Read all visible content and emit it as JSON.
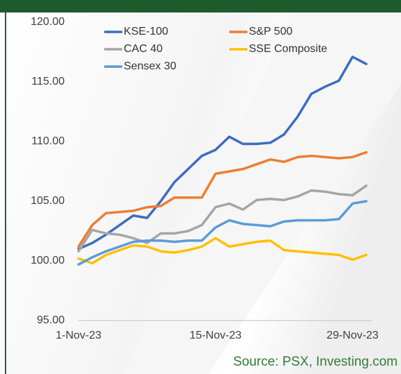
{
  "chart_data": {
    "type": "line",
    "source": "Source: PSX, Investing.com",
    "categories": [
      "1-Nov-23",
      null,
      null,
      null,
      null,
      null,
      null,
      null,
      null,
      null,
      "15-Nov-23",
      null,
      null,
      null,
      null,
      null,
      null,
      null,
      null,
      null,
      "29-Nov-23",
      null
    ],
    "ylim": [
      95,
      120
    ],
    "yticks": [
      {
        "value": 95,
        "label": "95.00"
      },
      {
        "value": 100,
        "label": "100.00"
      },
      {
        "value": 105,
        "label": "105.00"
      },
      {
        "value": 110,
        "label": "110.00"
      },
      {
        "value": 115,
        "label": "115.00"
      },
      {
        "value": 120,
        "label": "120.00"
      }
    ],
    "grid": false,
    "legend": "top",
    "series": [
      {
        "name": "KSE-100",
        "color": "#3d6cc0",
        "values": [
          101.0,
          101.5,
          102.2,
          103.0,
          103.8,
          103.6,
          105.0,
          106.6,
          107.7,
          108.8,
          109.3,
          110.4,
          109.8,
          109.8,
          109.9,
          110.6,
          112.1,
          114.0,
          114.6,
          115.1,
          117.1,
          116.5
        ]
      },
      {
        "name": "S&P 500",
        "color": "#ed7d31",
        "values": [
          101.2,
          103.0,
          104.0,
          104.1,
          104.2,
          104.5,
          104.6,
          105.3,
          105.3,
          105.3,
          107.3,
          107.5,
          107.7,
          108.1,
          108.5,
          108.3,
          108.7,
          108.8,
          108.7,
          108.6,
          108.7,
          109.1
        ]
      },
      {
        "name": "CAC 40",
        "color": "#a5a5a5",
        "values": [
          100.8,
          102.6,
          102.3,
          102.2,
          101.9,
          101.5,
          102.3,
          102.3,
          102.5,
          103.0,
          104.5,
          104.8,
          104.3,
          105.1,
          105.2,
          105.1,
          105.4,
          105.9,
          105.8,
          105.6,
          105.5,
          106.3
        ]
      },
      {
        "name": "SSE Composite",
        "color": "#ffc000",
        "values": [
          100.2,
          99.8,
          100.5,
          100.9,
          101.3,
          101.2,
          100.8,
          100.7,
          100.9,
          101.2,
          101.9,
          101.2,
          101.4,
          101.6,
          101.7,
          100.9,
          100.8,
          100.7,
          100.6,
          100.5,
          100.1,
          100.5
        ]
      },
      {
        "name": "Sensex 30",
        "color": "#5b9bd5",
        "values": [
          99.7,
          100.3,
          100.8,
          101.2,
          101.6,
          101.7,
          101.7,
          101.6,
          101.7,
          101.7,
          102.8,
          103.4,
          103.1,
          103.0,
          102.9,
          103.3,
          103.4,
          103.4,
          103.4,
          103.5,
          104.8,
          105.0
        ]
      }
    ]
  }
}
